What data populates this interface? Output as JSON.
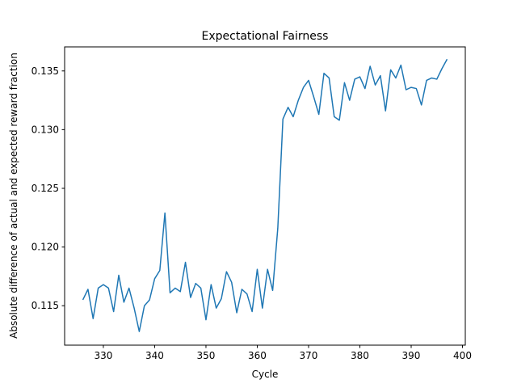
{
  "chart_data": {
    "type": "line",
    "title": "Expectational Fairness",
    "xlabel": "Cycle",
    "ylabel": "Absolute difference of actual and expected reward fraction",
    "xlim": [
      322.45,
      400.55
    ],
    "ylim": [
      0.11164,
      0.13705
    ],
    "xticks": [
      330,
      340,
      350,
      360,
      370,
      380,
      390,
      400
    ],
    "yticks": [
      0.115,
      0.12,
      0.125,
      0.13,
      0.135
    ],
    "ytick_labels": [
      "0.115",
      "0.120",
      "0.125",
      "0.130",
      "0.135"
    ],
    "grid": false,
    "line_color": "#1f77b4",
    "series": [
      {
        "x": [
          326,
          327,
          328,
          329,
          330,
          331,
          332,
          333,
          334,
          335,
          336,
          337,
          338,
          339,
          340,
          341,
          342,
          343,
          344,
          345,
          346,
          347,
          348,
          349,
          350,
          351,
          352,
          353,
          354,
          355,
          356,
          357,
          358,
          359,
          360,
          361,
          362,
          363,
          364,
          365,
          366,
          367,
          368,
          369,
          370,
          371,
          372,
          373,
          374,
          375,
          376,
          377,
          378,
          379,
          380,
          381,
          382,
          383,
          384,
          385,
          386,
          387,
          388,
          389,
          390,
          391,
          392,
          393,
          394,
          395,
          396,
          397
        ],
        "y": [
          0.1155,
          0.1164,
          0.1139,
          0.1165,
          0.1168,
          0.1165,
          0.1145,
          0.1176,
          0.1153,
          0.1165,
          0.1148,
          0.1128,
          0.115,
          0.1155,
          0.1173,
          0.118,
          0.1229,
          0.1161,
          0.1165,
          0.1162,
          0.1187,
          0.1157,
          0.1169,
          0.1165,
          0.1138,
          0.1168,
          0.1148,
          0.1156,
          0.1179,
          0.117,
          0.1144,
          0.1164,
          0.116,
          0.1145,
          0.1181,
          0.1148,
          0.1181,
          0.1163,
          0.1216,
          0.1309,
          0.1319,
          0.1311,
          0.1325,
          0.1336,
          0.1342,
          0.1328,
          0.1313,
          0.1348,
          0.1344,
          0.1311,
          0.1308,
          0.134,
          0.1325,
          0.1343,
          0.1345,
          0.1335,
          0.1354,
          0.1338,
          0.1346,
          0.1316,
          0.1351,
          0.1344,
          0.1355,
          0.1334,
          0.1336,
          0.1335,
          0.1321,
          0.1342,
          0.1344,
          0.1343,
          0.1352,
          0.136
        ]
      }
    ]
  }
}
